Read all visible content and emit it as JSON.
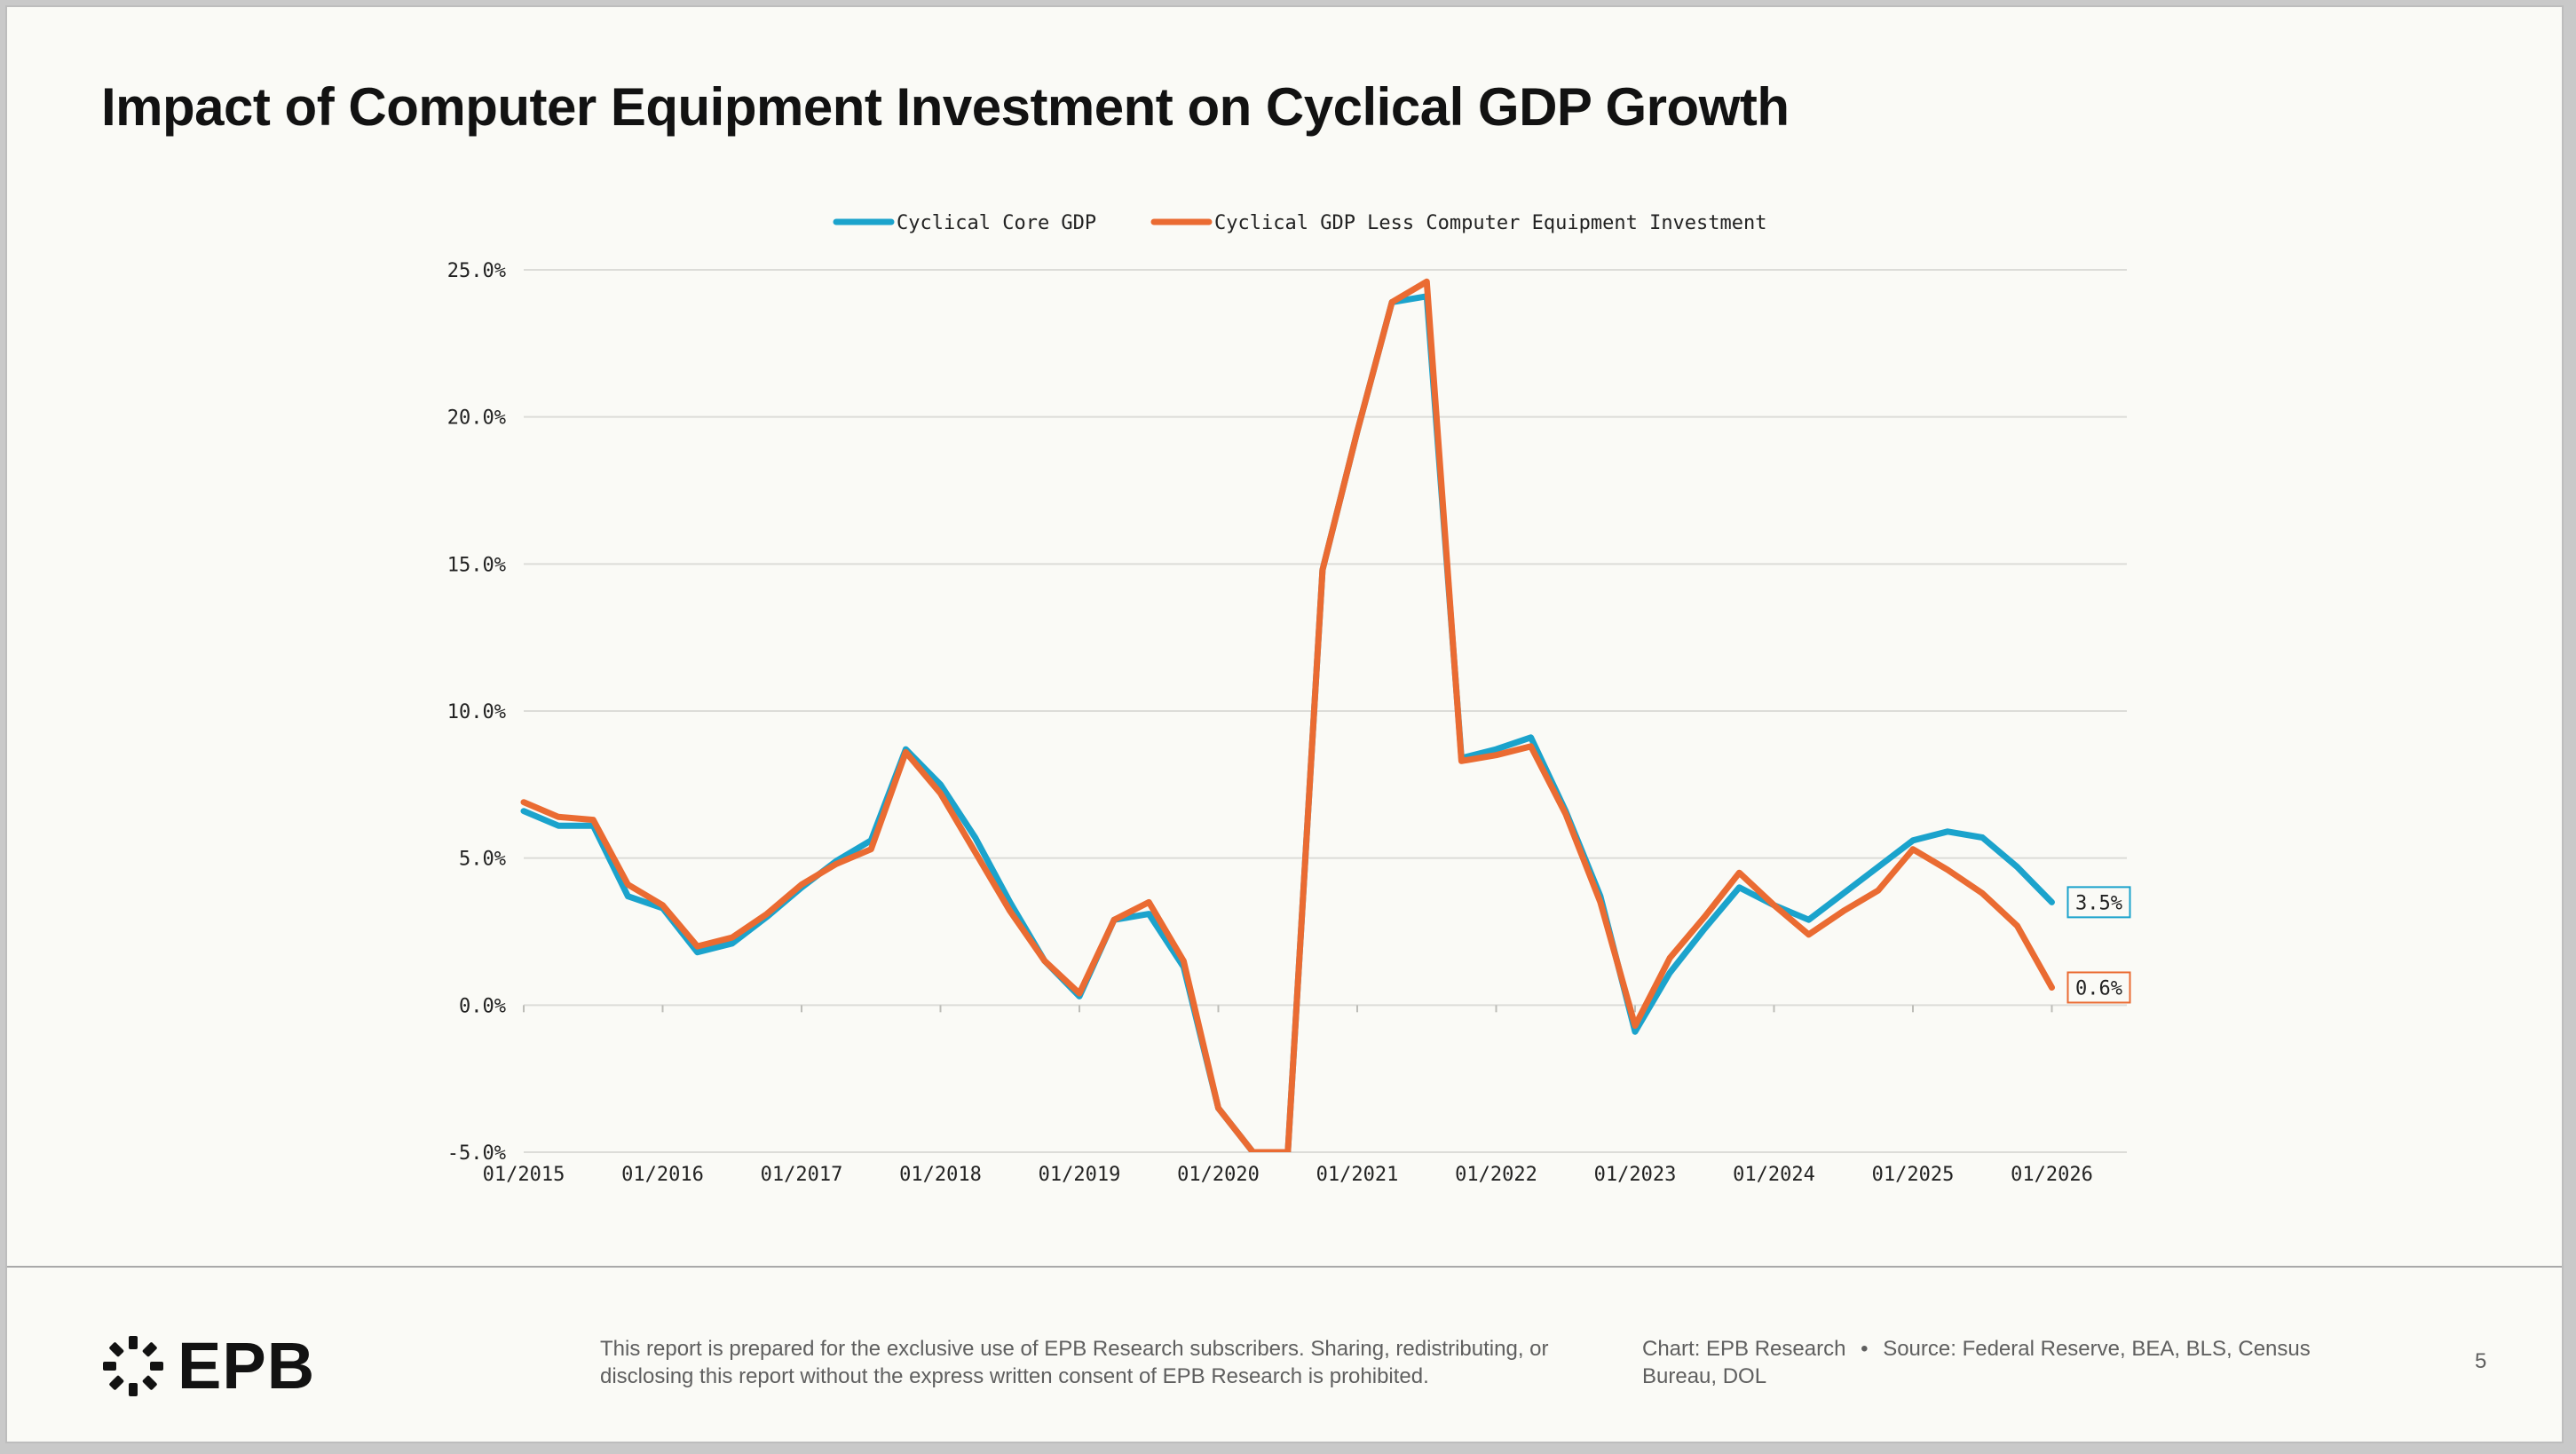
{
  "slide": {
    "title": "Impact of Computer Equipment Investment on Cyclical GDP Growth",
    "page_number": "5"
  },
  "footer": {
    "logo_text": "EPB",
    "disclaimer": "This report is prepared for the exclusive use of EPB Research subscribers. Sharing, redistributing, or disclosing this report without the express written consent of EPB Research is prohibited.",
    "chart_credit": "Chart: EPB Research",
    "separator": "•",
    "source": "Source: Federal Reserve, BEA, BLS, Census Bureau, DOL"
  },
  "colors": {
    "core": "#1ba3cc",
    "less": "#ea6b32",
    "grid": "#dcdcd8",
    "text": "#222222"
  },
  "chart_data": {
    "type": "line",
    "title": "",
    "xlabel": "",
    "ylabel": "",
    "x_tick_labels": [
      "01/2015",
      "01/2016",
      "01/2017",
      "01/2018",
      "01/2019",
      "01/2020",
      "01/2021",
      "01/2022",
      "01/2023",
      "01/2024",
      "01/2025",
      "01/2026"
    ],
    "y_tick_labels": [
      "25.0%",
      "20.0%",
      "15.0%",
      "10.0%",
      "5.0%",
      "0.0%",
      "-5.0%"
    ],
    "ylim": [
      -5,
      25
    ],
    "grid": true,
    "legend_position": "top-center",
    "series": [
      {
        "name": "Cyclical Core GDP",
        "color": "#1ba3cc",
        "end_label": "3.5%",
        "values": [
          6.6,
          6.1,
          6.1,
          3.7,
          3.3,
          1.8,
          2.1,
          3.0,
          4.0,
          4.9,
          5.6,
          8.7,
          7.5,
          5.7,
          3.5,
          1.5,
          0.3,
          2.9,
          3.1,
          1.3,
          -3.5,
          -5.0,
          -5.0,
          14.8,
          19.5,
          23.9,
          24.1,
          8.4,
          8.7,
          9.1,
          6.6,
          3.7,
          -0.9,
          1.1,
          2.6,
          4.0,
          3.4,
          2.9,
          3.8,
          4.7,
          5.6,
          5.9,
          5.7,
          4.7,
          3.5
        ]
      },
      {
        "name": "Cyclical GDP Less Computer Equipment Investment",
        "color": "#ea6b32",
        "end_label": "0.6%",
        "values": [
          6.9,
          6.4,
          6.3,
          4.1,
          3.4,
          2.0,
          2.3,
          3.1,
          4.1,
          4.8,
          5.3,
          8.6,
          7.2,
          5.2,
          3.2,
          1.5,
          0.4,
          2.9,
          3.5,
          1.5,
          -3.5,
          -5.0,
          -5.0,
          14.8,
          19.5,
          23.9,
          24.6,
          8.3,
          8.5,
          8.8,
          6.5,
          3.5,
          -0.7,
          1.6,
          3.0,
          4.5,
          3.4,
          2.4,
          3.2,
          3.9,
          5.3,
          4.6,
          3.8,
          2.7,
          0.6
        ]
      }
    ]
  }
}
